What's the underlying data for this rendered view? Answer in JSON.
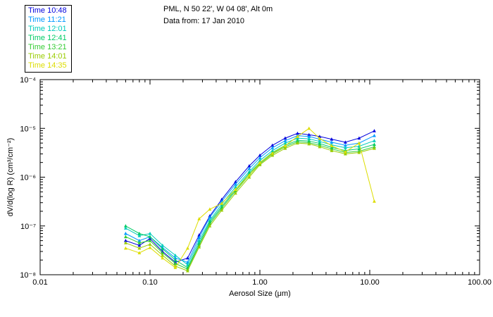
{
  "header": {
    "line1": "PML, N 50 22', W 04 08', Alt 0m",
    "line2": "Data from: 17 Jan 2010"
  },
  "legend": {
    "position": "top-left"
  },
  "chart_data": {
    "type": "line",
    "title": "",
    "xlabel": "Aerosol Size (μm)",
    "ylabel": "dV/d(log R) (cm³/cm⁻²)",
    "x_scale": "log",
    "y_scale": "log",
    "xlim": [
      0.01,
      100
    ],
    "ylim": [
      1e-08,
      0.0001
    ],
    "x_tick_values": [
      0.01,
      0.1,
      1,
      10,
      100
    ],
    "x_tick_labels": [
      "0.01",
      "0.10",
      "1.00",
      "10.00",
      "100.00"
    ],
    "y_tick_values": [
      1e-08,
      1e-07,
      1e-06,
      1e-05,
      0.0001
    ],
    "y_tick_labels": [
      "10⁻⁸",
      "10⁻⁷",
      "10⁻⁶",
      "10⁻⁵",
      "10⁻⁴"
    ],
    "grid": false,
    "x": [
      0.06,
      0.08,
      0.1,
      0.13,
      0.17,
      0.22,
      0.28,
      0.35,
      0.45,
      0.6,
      0.8,
      1.0,
      1.3,
      1.7,
      2.2,
      2.8,
      3.5,
      4.5,
      6.0,
      8.0,
      11.0
    ],
    "series": [
      {
        "name": "Time 10:48",
        "color": "#0000dd",
        "values": [
          5e-08,
          4e-08,
          5.5e-08,
          3e-08,
          1.8e-08,
          2.2e-08,
          6.5e-08,
          1.6e-07,
          3.5e-07,
          8e-07,
          1.7e-06,
          2.8e-06,
          4.5e-06,
          6.3e-06,
          7.9e-06,
          7.4e-06,
          6.8e-06,
          6e-06,
          5.2e-06,
          6.3e-06,
          8.9e-06
        ]
      },
      {
        "name": "Time 11:21",
        "color": "#0099ff",
        "values": [
          7e-08,
          5e-08,
          6e-08,
          3.6e-08,
          2.2e-08,
          1.8e-08,
          5.8e-08,
          1.5e-07,
          3.2e-07,
          7.2e-07,
          1.5e-06,
          2.5e-06,
          4e-06,
          5.6e-06,
          7.1e-06,
          6.8e-06,
          6e-06,
          5.2e-06,
          4.5e-06,
          5e-06,
          7.1e-06
        ]
      },
      {
        "name": "Time 12:01",
        "color": "#00ccbb",
        "values": [
          9e-08,
          6.3e-08,
          7e-08,
          4e-08,
          2.5e-08,
          1.6e-08,
          5e-08,
          1.3e-07,
          2.8e-07,
          6.3e-07,
          1.3e-06,
          2.2e-06,
          3.5e-06,
          5e-06,
          6.3e-06,
          6.1e-06,
          5.4e-06,
          4.6e-06,
          4e-06,
          4.3e-06,
          5.6e-06
        ]
      },
      {
        "name": "Time 12:41",
        "color": "#00cc66",
        "values": [
          1e-07,
          7e-08,
          6e-08,
          3.4e-08,
          2e-08,
          1.4e-08,
          4.4e-08,
          1.2e-07,
          2.5e-07,
          5.6e-07,
          1.2e-06,
          2e-06,
          3.2e-06,
          4.5e-06,
          5.7e-06,
          5.5e-06,
          4.9e-06,
          4.1e-06,
          3.5e-06,
          3.8e-06,
          4.7e-06
        ]
      },
      {
        "name": "Time 13:21",
        "color": "#33cc33",
        "values": [
          6e-08,
          4.5e-08,
          5e-08,
          2.8e-08,
          1.7e-08,
          1.3e-08,
          4e-08,
          1.1e-07,
          2.3e-07,
          5.2e-07,
          1.1e-06,
          1.9e-06,
          3e-06,
          4.2e-06,
          5.3e-06,
          5.1e-06,
          4.5e-06,
          3.8e-06,
          3.2e-06,
          3.4e-06,
          4.2e-06
        ]
      },
      {
        "name": "Time 14:01",
        "color": "#99cc00",
        "values": [
          4.5e-08,
          3.5e-08,
          4.2e-08,
          2.5e-08,
          1.5e-08,
          1.2e-08,
          3.7e-08,
          1e-07,
          2.1e-07,
          4.7e-07,
          1e-06,
          1.8e-06,
          2.8e-06,
          3.9e-06,
          5e-06,
          4.8e-06,
          4.2e-06,
          3.5e-06,
          3e-06,
          3.2e-06,
          3.9e-06
        ]
      },
      {
        "name": "Time 14:35",
        "color": "#dddd00",
        "values": [
          3.5e-08,
          2.8e-08,
          3.6e-08,
          2.2e-08,
          1.4e-08,
          3.5e-08,
          1.4e-07,
          2.2e-07,
          2.9e-07,
          5.6e-07,
          1.1e-06,
          2e-06,
          3.1e-06,
          4.4e-06,
          6.8e-06,
          1e-05,
          6.2e-06,
          4.4e-06,
          3.3e-06,
          5e-06,
          3.2e-07
        ]
      }
    ]
  }
}
